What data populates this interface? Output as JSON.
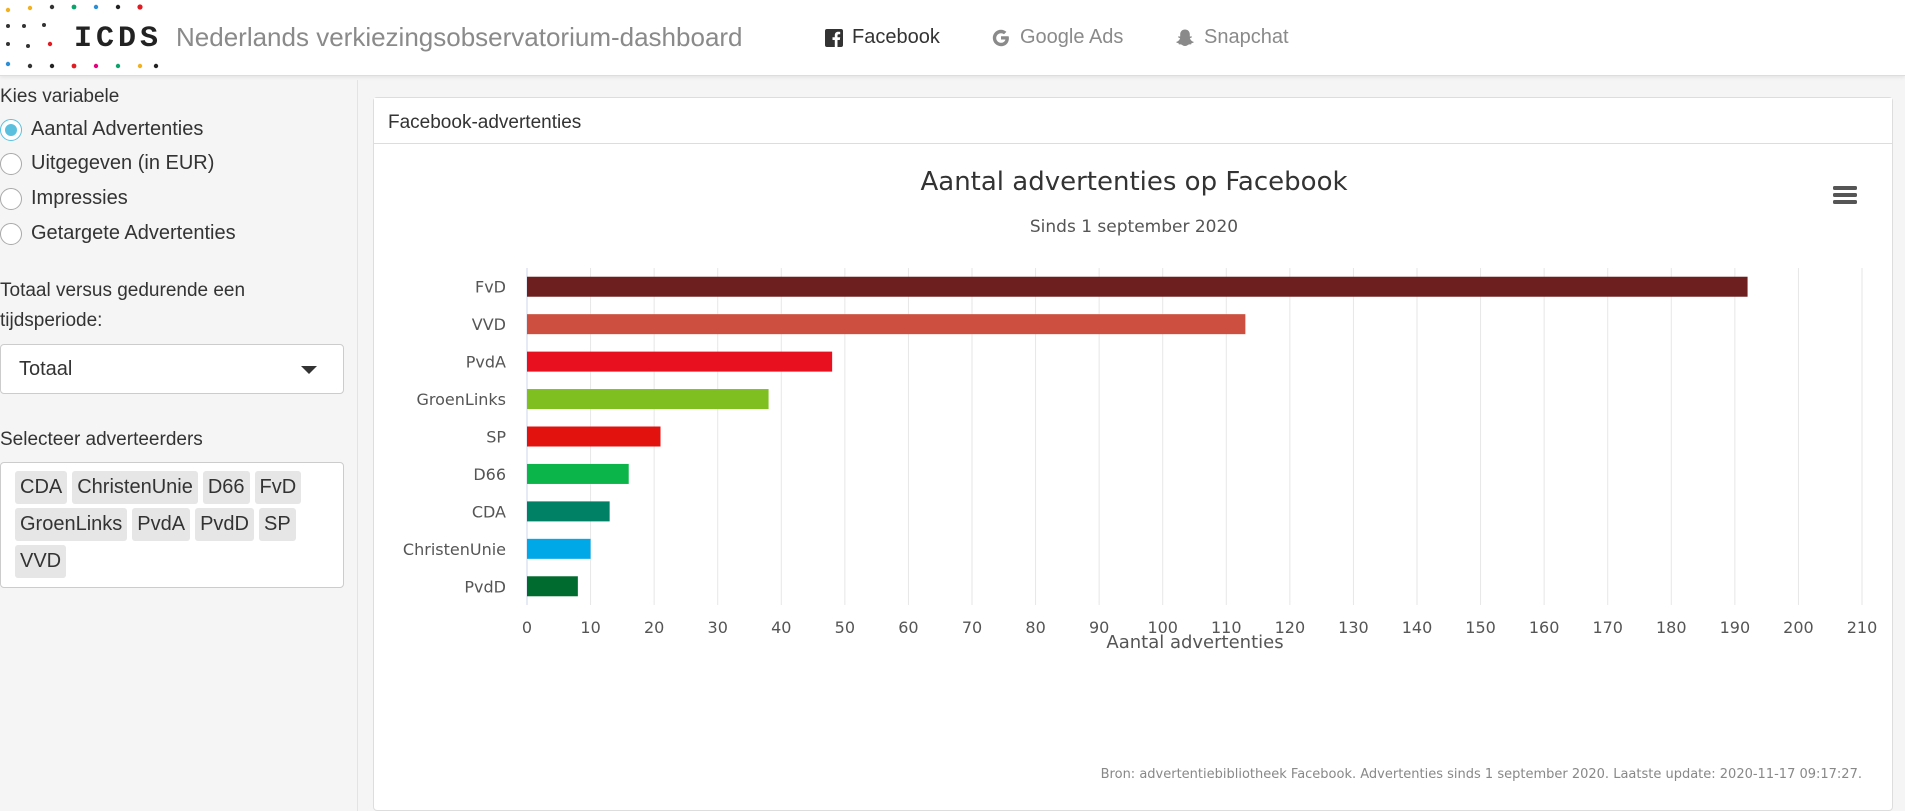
{
  "app": {
    "logo_text": "ICDS",
    "title": "Nederlands verkiezingsobservatorium-dashboard"
  },
  "nav": [
    {
      "label": "Facebook",
      "icon": "facebook-icon",
      "active": true
    },
    {
      "label": "Google Ads",
      "icon": "google-icon",
      "active": false
    },
    {
      "label": "Snapchat",
      "icon": "snapchat-icon",
      "active": false
    }
  ],
  "sidebar": {
    "variable_label": "Kies variabele",
    "variables": [
      {
        "label": "Aantal Advertenties",
        "checked": true
      },
      {
        "label": "Uitgegeven (in EUR)",
        "checked": false
      },
      {
        "label": "Impressies",
        "checked": false
      },
      {
        "label": "Getargete Advertenties",
        "checked": false
      }
    ],
    "period_label_line1": "Totaal versus gedurende een",
    "period_label_line2": "tijdsperiode:",
    "period_value": "Totaal",
    "advertisers_label": "Selecteer adverteerders",
    "advertisers": [
      "CDA",
      "ChristenUnie",
      "D66",
      "FvD",
      "GroenLinks",
      "PvdA",
      "PvdD",
      "SP",
      "VVD"
    ]
  },
  "panel": {
    "heading": "Facebook-advertenties"
  },
  "chart_data": {
    "type": "bar",
    "orientation": "horizontal",
    "title": "Aantal advertenties op Facebook",
    "subtitle": "Sinds 1 september 2020",
    "xlabel": "Aantal advertenties",
    "ylabel": "",
    "xlim": [
      0,
      210
    ],
    "ticks": [
      "0",
      "10",
      "20",
      "30",
      "40",
      "50",
      "60",
      "70",
      "80",
      "90",
      "100",
      "110",
      "120",
      "130",
      "140",
      "150",
      "160",
      "170",
      "180",
      "190",
      "200",
      "210"
    ],
    "grid": true,
    "categories": [
      "FvD",
      "VVD",
      "PvdA",
      "GroenLinks",
      "SP",
      "D66",
      "CDA",
      "ChristenUnie",
      "PvdD"
    ],
    "values": [
      192,
      113,
      48,
      38,
      21,
      16,
      13,
      10,
      8
    ],
    "colors": [
      "#6d1f1f",
      "#cc4f3f",
      "#e8101f",
      "#7fbf1f",
      "#e2120f",
      "#0cb54a",
      "#008064",
      "#00a8e8",
      "#006b2e"
    ],
    "caption": "Bron: advertentiebibliotheek Facebook. Advertenties sinds 1 september 2020. Laatste update: 2020-11-17 09:17:27."
  }
}
